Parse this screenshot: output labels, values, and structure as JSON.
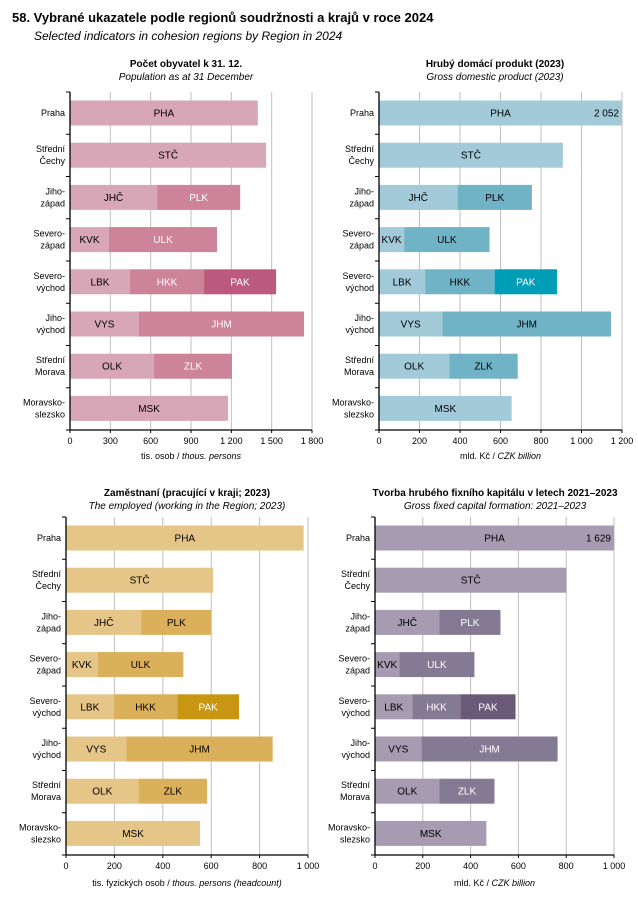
{
  "page": {
    "title": "58. Vybrané ukazatele podle regionů soudržnosti  a krajů v roce 2024",
    "subtitle": "Selected indicators in cohesion regions by Region in 2024"
  },
  "chart_data": [
    {
      "type": "bar",
      "orientation": "horizontal-stacked",
      "title": "Počet obyvatel k 31. 12.",
      "subtitle": "Population as at 31 December",
      "xlabel_cz": "tis. osob / ",
      "xlabel_en": "thous. persons",
      "xlim": [
        0,
        1800
      ],
      "xticks": [
        0,
        300,
        600,
        900,
        1200,
        1500,
        1800
      ],
      "xtick_labels": [
        "0",
        "300",
        "600",
        "900",
        "1 200",
        "1 500",
        "1 800"
      ],
      "grid": true,
      "colors": [
        "#d8a7b7",
        "#cd8399",
        "#bc5a7d"
      ],
      "light_text_colors": [
        "#000000",
        "#ffffff",
        "#ffffff"
      ],
      "categories": [
        {
          "label": [
            "Praha"
          ],
          "segments": [
            {
              "code": "PHA",
              "value": 1397
            }
          ]
        },
        {
          "label": [
            "Střední",
            "Čechy"
          ],
          "segments": [
            {
              "code": "STČ",
              "value": 1459
            }
          ]
        },
        {
          "label": [
            "Jiho-",
            "západ"
          ],
          "segments": [
            {
              "code": "JHČ",
              "value": 648
            },
            {
              "code": "PLK",
              "value": 618
            }
          ]
        },
        {
          "label": [
            "Severo-",
            "západ"
          ],
          "segments": [
            {
              "code": "KVK",
              "value": 290
            },
            {
              "code": "ULK",
              "value": 804
            }
          ]
        },
        {
          "label": [
            "Severo-",
            "východ"
          ],
          "segments": [
            {
              "code": "LBK",
              "value": 446
            },
            {
              "code": "HKK",
              "value": 551
            },
            {
              "code": "PAK",
              "value": 536
            }
          ]
        },
        {
          "label": [
            "Jiho-",
            "východ"
          ],
          "segments": [
            {
              "code": "VYS",
              "value": 513
            },
            {
              "code": "JHM",
              "value": 1228
            }
          ]
        },
        {
          "label": [
            "Střední",
            "Morava"
          ],
          "segments": [
            {
              "code": "OLK",
              "value": 625
            },
            {
              "code": "ZLK",
              "value": 580
            }
          ]
        },
        {
          "label": [
            "Moravsko-",
            "slezsko"
          ],
          "segments": [
            {
              "code": "MSK",
              "value": 1176
            }
          ]
        }
      ]
    },
    {
      "type": "bar",
      "orientation": "horizontal-stacked",
      "title": "Hrubý domácí produkt (2023)",
      "subtitle": "Gross domestic product (2023)",
      "xlabel_cz": "mld. Kč / ",
      "xlabel_en": "CZK billion",
      "xlim": [
        0,
        1200
      ],
      "xticks": [
        0,
        200,
        400,
        600,
        800,
        1000,
        1200
      ],
      "xtick_labels": [
        "0",
        "200",
        "400",
        "600",
        "800",
        "1 000",
        "1 200"
      ],
      "grid": true,
      "colors": [
        "#a2cad8",
        "#70b3c6",
        "#009db6"
      ],
      "light_text_colors": [
        "#000000",
        "#000000",
        "#ffffff"
      ],
      "categories": [
        {
          "label": [
            "Praha"
          ],
          "segments": [
            {
              "code": "PHA",
              "value": 2052,
              "value_label": "2 052"
            }
          ]
        },
        {
          "label": [
            "Střední",
            "Čechy"
          ],
          "segments": [
            {
              "code": "STČ",
              "value": 908
            }
          ]
        },
        {
          "label": [
            "Jiho-",
            "západ"
          ],
          "segments": [
            {
              "code": "JHČ",
              "value": 388
            },
            {
              "code": "PLK",
              "value": 367
            }
          ]
        },
        {
          "label": [
            "Severo-",
            "západ"
          ],
          "segments": [
            {
              "code": "KVK",
              "value": 124
            },
            {
              "code": "ULK",
              "value": 422
            }
          ]
        },
        {
          "label": [
            "Severo-",
            "východ"
          ],
          "segments": [
            {
              "code": "LBK",
              "value": 228
            },
            {
              "code": "HKK",
              "value": 343
            },
            {
              "code": "PAK",
              "value": 308
            }
          ]
        },
        {
          "label": [
            "Jiho-",
            "východ"
          ],
          "segments": [
            {
              "code": "VYS",
              "value": 313
            },
            {
              "code": "JHM",
              "value": 833
            }
          ]
        },
        {
          "label": [
            "Střední",
            "Morava"
          ],
          "segments": [
            {
              "code": "OLK",
              "value": 347
            },
            {
              "code": "ZLK",
              "value": 338
            }
          ]
        },
        {
          "label": [
            "Moravsko-",
            "slezsko"
          ],
          "segments": [
            {
              "code": "MSK",
              "value": 655
            }
          ]
        }
      ]
    },
    {
      "type": "bar",
      "orientation": "horizontal-stacked",
      "title": "Zaměstnaní (pracující v kraji; 2023)",
      "subtitle": "The employed (working in the Region; 2023)",
      "xlabel_cz": "tis. fyzických osob / ",
      "xlabel_en": "thous. persons (headcount)",
      "xlim": [
        0,
        1000
      ],
      "xticks": [
        0,
        200,
        400,
        600,
        800,
        1000
      ],
      "xtick_labels": [
        "0",
        "200",
        "400",
        "600",
        "800",
        "1 000"
      ],
      "grid": true,
      "colors": [
        "#e6c588",
        "#dbb05a",
        "#c99614"
      ],
      "light_text_colors": [
        "#000000",
        "#000000",
        "#ffffff"
      ],
      "categories": [
        {
          "label": [
            "Praha"
          ],
          "segments": [
            {
              "code": "PHA",
              "value": 982
            }
          ]
        },
        {
          "label": [
            "Střední",
            "Čechy"
          ],
          "segments": [
            {
              "code": "STČ",
              "value": 608
            }
          ]
        },
        {
          "label": [
            "Jiho-",
            "západ"
          ],
          "segments": [
            {
              "code": "JHČ",
              "value": 312
            },
            {
              "code": "PLK",
              "value": 288
            }
          ]
        },
        {
          "label": [
            "Severo-",
            "západ"
          ],
          "segments": [
            {
              "code": "KVK",
              "value": 131
            },
            {
              "code": "ULK",
              "value": 354
            }
          ]
        },
        {
          "label": [
            "Severo-",
            "východ"
          ],
          "segments": [
            {
              "code": "LBK",
              "value": 197
            },
            {
              "code": "HKK",
              "value": 263
            },
            {
              "code": "PAK",
              "value": 255
            }
          ]
        },
        {
          "label": [
            "Jiho-",
            "východ"
          ],
          "segments": [
            {
              "code": "VYS",
              "value": 250
            },
            {
              "code": "JHM",
              "value": 604
            }
          ]
        },
        {
          "label": [
            "Střední",
            "Morava"
          ],
          "segments": [
            {
              "code": "OLK",
              "value": 300
            },
            {
              "code": "ZLK",
              "value": 283
            }
          ]
        },
        {
          "label": [
            "Moravsko-",
            "slezsko"
          ],
          "segments": [
            {
              "code": "MSK",
              "value": 554
            }
          ]
        }
      ]
    },
    {
      "type": "bar",
      "orientation": "horizontal-stacked",
      "title": "Tvorba hrubého fixního kapitálu v letech 2021–2023",
      "subtitle": "Gross fixed capital formation: 2021–2023",
      "xlabel_cz": "mld. Kč / ",
      "xlabel_en": "CZK billion",
      "xlim": [
        0,
        1000
      ],
      "xticks": [
        0,
        200,
        400,
        600,
        800,
        1000
      ],
      "xtick_labels": [
        "0",
        "200",
        "400",
        "600",
        "800",
        "1 000"
      ],
      "grid": true,
      "colors": [
        "#a69bb0",
        "#857a93",
        "#6a5a78"
      ],
      "light_text_colors": [
        "#000000",
        "#ffffff",
        "#ffffff"
      ],
      "categories": [
        {
          "label": [
            "Praha"
          ],
          "segments": [
            {
              "code": "PHA",
              "value": 1629,
              "value_label": "1 629"
            }
          ]
        },
        {
          "label": [
            "Střední",
            "Čechy"
          ],
          "segments": [
            {
              "code": "STČ",
              "value": 801
            }
          ]
        },
        {
          "label": [
            "Jiho-",
            "západ"
          ],
          "segments": [
            {
              "code": "JHČ",
              "value": 270
            },
            {
              "code": "PLK",
              "value": 255
            }
          ]
        },
        {
          "label": [
            "Severo-",
            "západ"
          ],
          "segments": [
            {
              "code": "KVK",
              "value": 102
            },
            {
              "code": "ULK",
              "value": 314
            }
          ]
        },
        {
          "label": [
            "Severo-",
            "východ"
          ],
          "segments": [
            {
              "code": "LBK",
              "value": 157
            },
            {
              "code": "HKK",
              "value": 201
            },
            {
              "code": "PAK",
              "value": 230
            }
          ]
        },
        {
          "label": [
            "Jiho-",
            "východ"
          ],
          "segments": [
            {
              "code": "VYS",
              "value": 195
            },
            {
              "code": "JHM",
              "value": 569
            }
          ]
        },
        {
          "label": [
            "Střední",
            "Morava"
          ],
          "segments": [
            {
              "code": "OLK",
              "value": 270
            },
            {
              "code": "ZLK",
              "value": 230
            }
          ]
        },
        {
          "label": [
            "Moravsko-",
            "slezsko"
          ],
          "segments": [
            {
              "code": "MSK",
              "value": 466
            }
          ]
        }
      ]
    }
  ]
}
